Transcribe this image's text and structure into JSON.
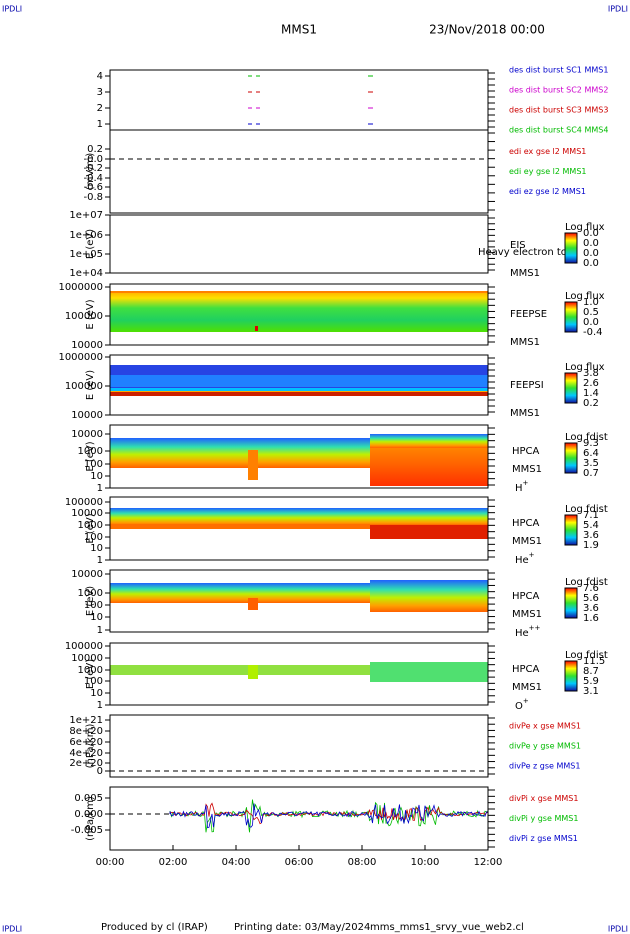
{
  "header": {
    "corner_top_left": "IPDLI",
    "corner_top_right": "IPDLI",
    "title": "MMS1",
    "date": "23/Nov/2018 00:00"
  },
  "panels": [
    {
      "ylabel": "",
      "yticks": [
        "4",
        "3",
        "2",
        "1"
      ],
      "legend": [
        {
          "text": "des dist burst SC1 MMS1",
          "color": "#0000cc"
        },
        {
          "text": "des dist burst SC2 MMS2",
          "color": "#cc00cc"
        },
        {
          "text": "des dist burst SC3 MMS3",
          "color": "#cc0000"
        },
        {
          "text": "des dist burst SC4 MMS4",
          "color": "#00bb00"
        }
      ]
    },
    {
      "ylabel": "(mV/m)",
      "yticks": [
        "0.2",
        "-0.0",
        "-0.2",
        "-0.4",
        "-0.6",
        "-0.8"
      ],
      "legend": [
        {
          "text": "edi ex gse l2 MMS1",
          "color": "#cc0000"
        },
        {
          "text": "edi ey gse l2 MMS1",
          "color": "#00bb00"
        },
        {
          "text": "edi ez gse l2 MMS1",
          "color": "#0000cc"
        }
      ]
    },
    {
      "ylabel": "E (eV)",
      "yticks": [
        "1e+07",
        "1e+06",
        "1e+05",
        "1e+04"
      ],
      "side": [
        "EIS",
        "MMS1"
      ],
      "overlay": "Heavy electron to",
      "colorbar": {
        "title": "Log flux",
        "labels": [
          "0.0",
          "0.0",
          "0.0",
          "0.0"
        ]
      }
    },
    {
      "ylabel": "E (eV)",
      "yticks": [
        "1000000",
        "100000",
        "10000"
      ],
      "side": [
        "FEEPSE",
        "MMS1"
      ],
      "colorbar": {
        "title": "Log flux",
        "labels": [
          "1.0",
          "0.5",
          "0.0",
          "-0.4"
        ]
      }
    },
    {
      "ylabel": "E (eV)",
      "yticks": [
        "1000000",
        "100000",
        "10000"
      ],
      "side": [
        "FEEPSI",
        "MMS1"
      ],
      "colorbar": {
        "title": "Log flux",
        "labels": [
          "3.8",
          "2.6",
          "1.4",
          "0.2"
        ]
      }
    },
    {
      "ylabel": "E (eV)",
      "yticks": [
        "10000",
        "1000",
        "100",
        "10",
        "1"
      ],
      "side": [
        "HPCA",
        "MMS1"
      ],
      "species": {
        "base": "H",
        "sup": "+"
      },
      "colorbar": {
        "title": "Log fdist",
        "labels": [
          "9.3",
          "6.4",
          "3.5",
          "0.7"
        ]
      }
    },
    {
      "ylabel": "E (eV)",
      "yticks": [
        "100000",
        "10000",
        "1000",
        "100",
        "10",
        "1"
      ],
      "side": [
        "HPCA",
        "MMS1"
      ],
      "species": {
        "base": "He",
        "sup": "+"
      },
      "colorbar": {
        "title": "Log fdist",
        "labels": [
          "7.1",
          "5.4",
          "3.6",
          "1.9"
        ]
      }
    },
    {
      "ylabel": "E (eV)",
      "yticks": [
        "10000",
        "1000",
        "100",
        "10",
        "1"
      ],
      "side": [
        "HPCA",
        "MMS1"
      ],
      "species": {
        "base": "He",
        "sup": "++"
      },
      "colorbar": {
        "title": "Log fdist",
        "labels": [
          "7.6",
          "5.6",
          "3.6",
          "1.6"
        ]
      }
    },
    {
      "ylabel": "E (eV)",
      "yticks": [
        "100000",
        "10000",
        "1000",
        "100",
        "10",
        "1"
      ],
      "side": [
        "HPCA",
        "MMS1"
      ],
      "species": {
        "base": "O",
        "sup": "+"
      },
      "colorbar": {
        "title": "Log fdist",
        "labels": [
          "11.5",
          "8.7",
          "5.9",
          "3.1"
        ]
      }
    },
    {
      "ylabel": "(nPa/km)",
      "yticks": [
        "1e+21",
        "8e+20",
        "6e+20",
        "4e+20",
        "2e+20",
        "0"
      ],
      "legend": [
        {
          "text": "divPe x gse MMS1",
          "color": "#cc0000"
        },
        {
          "text": "divPe y gse MMS1",
          "color": "#00bb00"
        },
        {
          "text": "divPe z gse MMS1",
          "color": "#0000cc"
        }
      ]
    },
    {
      "ylabel": "(nPa/km)",
      "yticks": [
        "0.005",
        "0.000",
        "-0.005"
      ],
      "legend": [
        {
          "text": "divPi x gse MMS1",
          "color": "#cc0000"
        },
        {
          "text": "divPi y gse MMS1",
          "color": "#00bb00"
        },
        {
          "text": "divPi z gse MMS1",
          "color": "#0000cc"
        }
      ]
    }
  ],
  "xticks": [
    "00:00",
    "02:00",
    "04:00",
    "06:00",
    "08:00",
    "10:00",
    "12:00"
  ],
  "footer": {
    "corner_bottom_left": "IPDLI",
    "corner_bottom_right": "IPDLI",
    "producer": "Produced by cl (IRAP)",
    "printing": "Printing date: 03/May/2024",
    "file": "mms_mms1_srvy_vue_web2.cl"
  }
}
